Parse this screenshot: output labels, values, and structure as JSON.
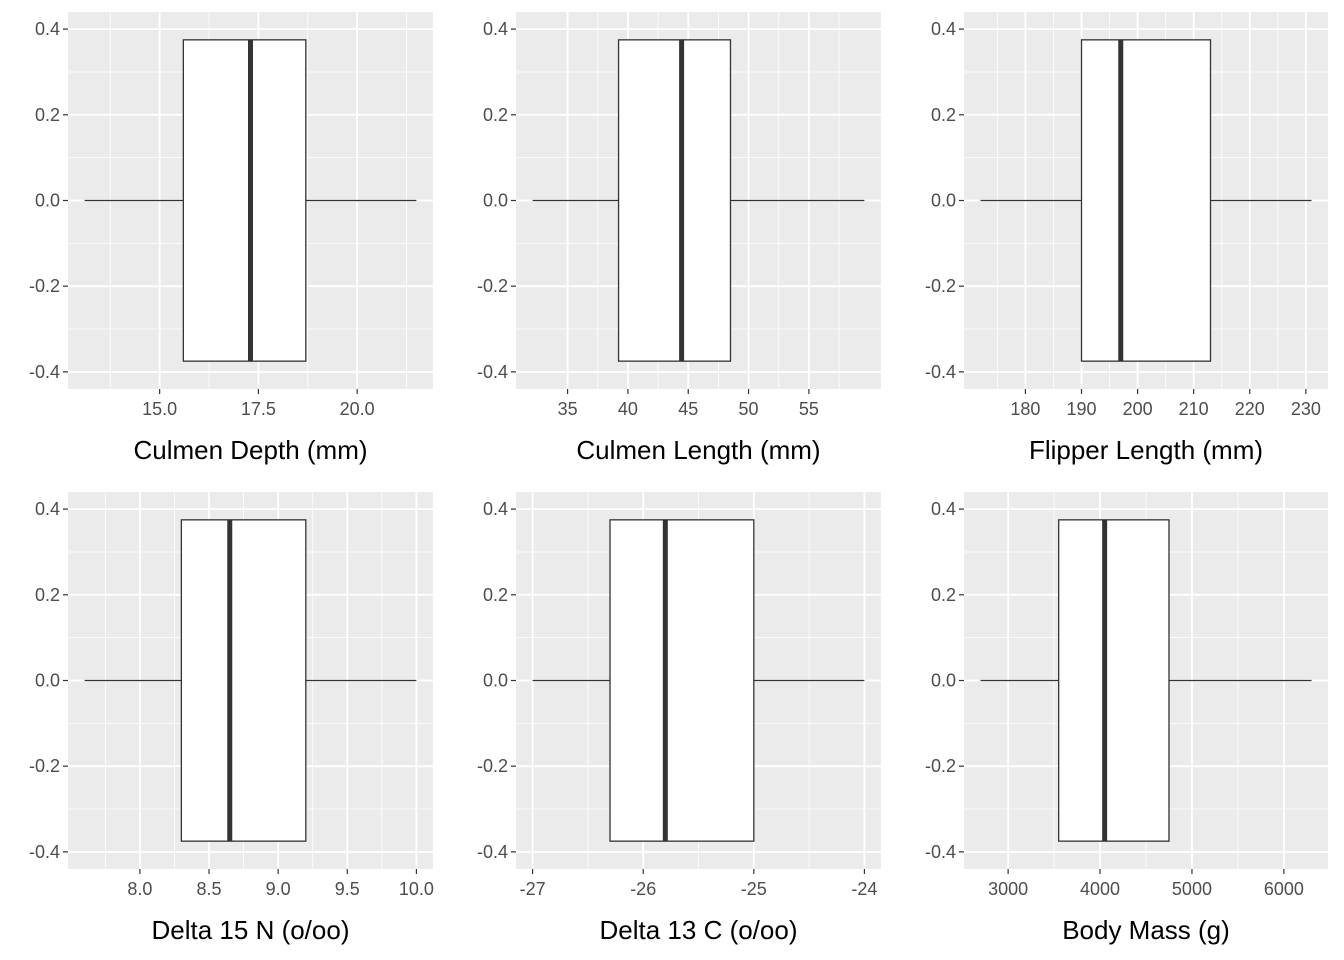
{
  "chart_data": [
    {
      "type": "boxplot",
      "xlabel": "Culmen Depth (mm)",
      "xlim": [
        13.1,
        21.5
      ],
      "xticks": [
        15,
        17.5,
        20
      ],
      "xtick_labels": [
        "15.0",
        "17.5",
        "20.0"
      ],
      "xminor": [
        13.75,
        16.25,
        18.75,
        21.25
      ],
      "box": {
        "min": 13.1,
        "q1": 15.6,
        "median": 17.3,
        "q3": 18.7,
        "max": 21.5
      },
      "ylim": [
        -0.4,
        0.4
      ],
      "yticks": [
        0.4,
        0.2,
        0.0,
        -0.2,
        -0.4
      ],
      "ytick_labels": [
        "0.4",
        "0.2",
        "0.0",
        "-0.2",
        "-0.4"
      ]
    },
    {
      "type": "boxplot",
      "xlabel": "Culmen Length (mm)",
      "xlim": [
        32.1,
        59.6
      ],
      "xticks": [
        35,
        40,
        45,
        50,
        55
      ],
      "xtick_labels": [
        "35",
        "40",
        "45",
        "50",
        "55"
      ],
      "xminor": [
        37.5,
        42.5,
        47.5,
        52.5,
        57.5
      ],
      "box": {
        "min": 32.1,
        "q1": 39.225,
        "median": 44.45,
        "q3": 48.5,
        "max": 59.6
      },
      "ylim": [
        -0.4,
        0.4
      ],
      "yticks": [
        0.4,
        0.2,
        0.0,
        -0.2,
        -0.4
      ],
      "ytick_labels": [
        "0.4",
        "0.2",
        "0.0",
        "-0.2",
        "-0.4"
      ]
    },
    {
      "type": "boxplot",
      "xlabel": "Flipper Length (mm)",
      "xlim": [
        172,
        231
      ],
      "xticks": [
        180,
        190,
        200,
        210,
        220,
        230
      ],
      "xtick_labels": [
        "180",
        "190",
        "200",
        "210",
        "220",
        "230"
      ],
      "xminor": [
        175,
        185,
        195,
        205,
        215,
        225
      ],
      "box": {
        "min": 172,
        "q1": 190,
        "median": 197,
        "q3": 213,
        "max": 231
      },
      "ylim": [
        -0.4,
        0.4
      ],
      "yticks": [
        0.4,
        0.2,
        0.0,
        -0.2,
        -0.4
      ],
      "ytick_labels": [
        "0.4",
        "0.2",
        "0.0",
        "-0.2",
        "-0.4"
      ]
    },
    {
      "type": "boxplot",
      "xlabel": "Delta 15 N (o/oo)",
      "xlim": [
        7.6,
        10.0
      ],
      "xticks": [
        8.0,
        8.5,
        9.0,
        9.5,
        10.0
      ],
      "xtick_labels": [
        "8.0",
        "8.5",
        "9.0",
        "9.5",
        "10.0"
      ],
      "xminor": [
        7.75,
        8.25,
        8.75,
        9.25,
        9.75
      ],
      "box": {
        "min": 7.6,
        "q1": 8.3,
        "median": 8.65,
        "q3": 9.2,
        "max": 10.0
      },
      "ylim": [
        -0.4,
        0.4
      ],
      "yticks": [
        0.4,
        0.2,
        0.0,
        -0.2,
        -0.4
      ],
      "ytick_labels": [
        "0.4",
        "0.2",
        "0.0",
        "-0.2",
        "-0.4"
      ]
    },
    {
      "type": "boxplot",
      "xlabel": "Delta 13 C (o/oo)",
      "xlim": [
        -27.0,
        -24.0
      ],
      "xticks": [
        -27,
        -26,
        -25,
        -24
      ],
      "xtick_labels": [
        "-27",
        "-26",
        "-25",
        "-24"
      ],
      "xminor": [
        -26.5,
        -25.5,
        -24.5
      ],
      "box": {
        "min": -27.0,
        "q1": -26.3,
        "median": -25.8,
        "q3": -25.0,
        "max": -24.0
      },
      "ylim": [
        -0.4,
        0.4
      ],
      "yticks": [
        0.4,
        0.2,
        0.0,
        -0.2,
        -0.4
      ],
      "ytick_labels": [
        "0.4",
        "0.2",
        "0.0",
        "-0.2",
        "-0.4"
      ]
    },
    {
      "type": "boxplot",
      "xlabel": "Body Mass (g)",
      "xlim": [
        2700,
        6300
      ],
      "xticks": [
        3000,
        4000,
        5000,
        6000
      ],
      "xtick_labels": [
        "3000",
        "4000",
        "5000",
        "6000"
      ],
      "xminor": [
        3500,
        4500,
        5500
      ],
      "box": {
        "min": 2700,
        "q1": 3550,
        "median": 4050,
        "q3": 4750,
        "max": 6300
      },
      "ylim": [
        -0.4,
        0.4
      ],
      "yticks": [
        0.4,
        0.2,
        0.0,
        -0.2,
        -0.4
      ],
      "ytick_labels": [
        "0.4",
        "0.2",
        "0.0",
        "-0.2",
        "-0.4"
      ]
    }
  ]
}
